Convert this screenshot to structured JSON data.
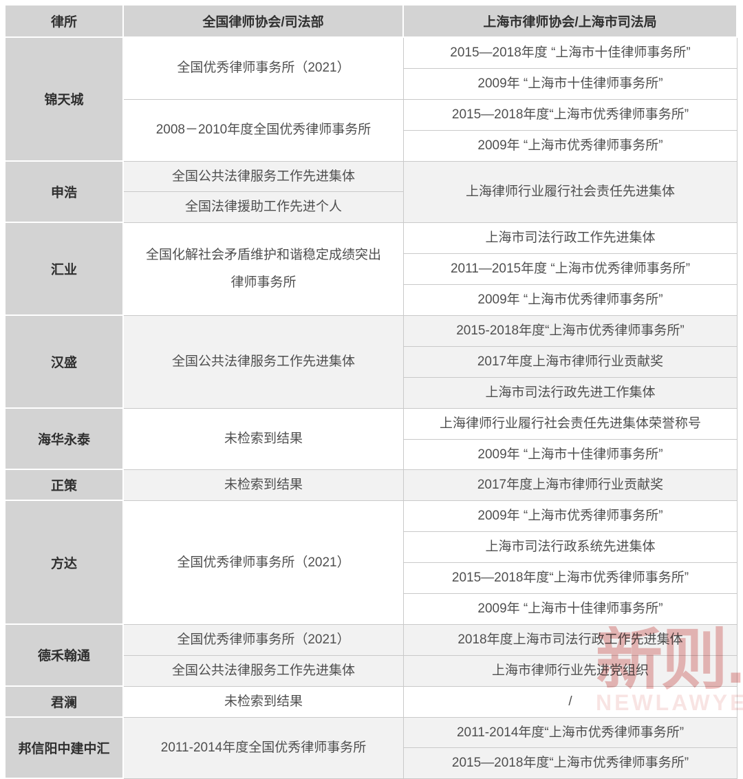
{
  "colors": {
    "header_bg": "#d3d3d3",
    "firm_col_bg": "#d3d3d3",
    "row_shade_bg": "#f2f2f2",
    "row_plain_bg": "#ffffff",
    "grid_border": "#c9c9c9",
    "body_text": "#4f4f4f",
    "header_text": "#2f2f2f",
    "watermark_red": "#c9302c"
  },
  "watermark": {
    "text": "新则.",
    "subtext": "NEWLAWYERS ■"
  },
  "table": {
    "headers": [
      "律所",
      "全国律师协会/司法部",
      "上海市律师协会/上海市司法局"
    ],
    "rows": [
      {
        "shade": false,
        "firm": {
          "text": "锦天城",
          "span": 4
        },
        "national": {
          "text": "全国优秀律师事务所（2021）",
          "span": 2
        },
        "shanghai": {
          "text": "2015—2018年度 “上海市十佳律师事务所”",
          "span": 1
        }
      },
      {
        "shade": false,
        "shanghai": {
          "text": "2009年 “上海市十佳律师事务所”",
          "span": 1
        }
      },
      {
        "shade": false,
        "national": {
          "text": "2008－2010年度全国优秀律师事务所",
          "span": 2
        },
        "shanghai": {
          "text": "2015—2018年度“上海市优秀律师事务所”",
          "span": 1
        }
      },
      {
        "shade": false,
        "shanghai": {
          "text": "2009年 “上海市优秀律师事务所”",
          "span": 1
        }
      },
      {
        "shade": true,
        "firm": {
          "text": "申浩",
          "span": 2
        },
        "national": {
          "text": "全国公共法律服务工作先进集体",
          "span": 1
        },
        "shanghai": {
          "text": "上海律师行业履行社会责任先进集体",
          "span": 2
        }
      },
      {
        "shade": true,
        "national": {
          "text": "全国法律援助工作先进个人",
          "span": 1
        }
      },
      {
        "shade": false,
        "firm": {
          "text": "汇业",
          "span": 3
        },
        "national": {
          "text": "全国化解社会矛盾维护和谐稳定成绩突出\n律师事务所",
          "span": 3
        },
        "shanghai": {
          "text": "上海市司法行政工作先进集体",
          "span": 1
        }
      },
      {
        "shade": false,
        "shanghai": {
          "text": "2011—2015年度 “上海市优秀律师事务所”",
          "span": 1
        }
      },
      {
        "shade": false,
        "shanghai": {
          "text": "2009年 “上海市优秀律师事务所”",
          "span": 1
        }
      },
      {
        "shade": true,
        "firm": {
          "text": "汉盛",
          "span": 3
        },
        "national": {
          "text": "全国公共法律服务工作先进集体",
          "span": 3
        },
        "shanghai": {
          "text": "2015-2018年度“上海市优秀律师事务所”",
          "span": 1
        }
      },
      {
        "shade": true,
        "shanghai": {
          "text": "2017年度上海市律师行业贡献奖",
          "span": 1
        }
      },
      {
        "shade": true,
        "shanghai": {
          "text": "上海市司法行政先进工作集体",
          "span": 1
        }
      },
      {
        "shade": false,
        "firm": {
          "text": "海华永泰",
          "span": 2
        },
        "national": {
          "text": "未检索到结果",
          "span": 2
        },
        "shanghai": {
          "text": "上海律师行业履行社会责任先进集体荣誉称号",
          "span": 1
        }
      },
      {
        "shade": false,
        "shanghai": {
          "text": "2009年 “上海市十佳律师事务所”",
          "span": 1
        }
      },
      {
        "shade": true,
        "firm": {
          "text": "正策",
          "span": 1
        },
        "national": {
          "text": "未检索到结果",
          "span": 1
        },
        "shanghai": {
          "text": "2017年度上海市律师行业贡献奖",
          "span": 1
        }
      },
      {
        "shade": false,
        "firm": {
          "text": "方达",
          "span": 4
        },
        "national": {
          "text": "全国优秀律师事务所（2021）",
          "span": 4
        },
        "shanghai": {
          "text": "2009年 “上海市优秀律师事务所”",
          "span": 1
        }
      },
      {
        "shade": false,
        "shanghai": {
          "text": "上海市司法行政系统先进集体",
          "span": 1
        }
      },
      {
        "shade": false,
        "shanghai": {
          "text": "2015—2018年度“上海市优秀律师事务所”",
          "span": 1
        }
      },
      {
        "shade": false,
        "shanghai": {
          "text": "2009年 “上海市十佳律师事务所”",
          "span": 1
        }
      },
      {
        "shade": true,
        "firm": {
          "text": "德禾翰通",
          "span": 2
        },
        "national": {
          "text": "全国优秀律师事务所（2021）",
          "span": 1
        },
        "shanghai": {
          "text": "2018年度上海市司法行政工作先进集体",
          "span": 1
        }
      },
      {
        "shade": true,
        "national": {
          "text": "全国公共法律服务工作先进集体",
          "span": 1
        },
        "shanghai": {
          "text": "上海市律师行业先进党组织",
          "span": 1
        }
      },
      {
        "shade": false,
        "firm": {
          "text": "君澜",
          "span": 1
        },
        "national": {
          "text": "未检索到结果",
          "span": 1
        },
        "shanghai": {
          "text": "/",
          "span": 1
        }
      },
      {
        "shade": true,
        "firm": {
          "text": "邦信阳中建中汇",
          "span": 2
        },
        "national": {
          "text": "2011-2014年度全国优秀律师事务所",
          "span": 2
        },
        "shanghai": {
          "text": "2011-2014年度“上海市优秀律师事务所”",
          "span": 1
        }
      },
      {
        "shade": true,
        "shanghai": {
          "text": "2015—2018年度“上海市优秀律师事务所”",
          "span": 1
        }
      }
    ]
  },
  "chart_data": {
    "type": "table",
    "title": "",
    "columns": [
      "律所",
      "全国律师协会/司法部",
      "上海市律师协会/上海市司法局"
    ],
    "rows": [
      {
        "firm": "锦天城",
        "national": [
          "全国优秀律师事务所（2021）",
          "2008－2010年度全国优秀律师事务所"
        ],
        "shanghai": [
          "2015—2018年度 “上海市十佳律师事务所”",
          "2009年 “上海市十佳律师事务所”",
          "2015—2018年度“上海市优秀律师事务所”",
          "2009年 “上海市优秀律师事务所”"
        ]
      },
      {
        "firm": "申浩",
        "national": [
          "全国公共法律服务工作先进集体",
          "全国法律援助工作先进个人"
        ],
        "shanghai": [
          "上海律师行业履行社会责任先进集体"
        ]
      },
      {
        "firm": "汇业",
        "national": [
          "全国化解社会矛盾维护和谐稳定成绩突出律师事务所"
        ],
        "shanghai": [
          "上海市司法行政工作先进集体",
          "2011—2015年度 “上海市优秀律师事务所”",
          "2009年 “上海市优秀律师事务所”"
        ]
      },
      {
        "firm": "汉盛",
        "national": [
          "全国公共法律服务工作先进集体"
        ],
        "shanghai": [
          "2015-2018年度“上海市优秀律师事务所”",
          "2017年度上海市律师行业贡献奖",
          "上海市司法行政先进工作集体"
        ]
      },
      {
        "firm": "海华永泰",
        "national": [
          "未检索到结果"
        ],
        "shanghai": [
          "上海律师行业履行社会责任先进集体荣誉称号",
          "2009年 “上海市十佳律师事务所”"
        ]
      },
      {
        "firm": "正策",
        "national": [
          "未检索到结果"
        ],
        "shanghai": [
          "2017年度上海市律师行业贡献奖"
        ]
      },
      {
        "firm": "方达",
        "national": [
          "全国优秀律师事务所（2021）"
        ],
        "shanghai": [
          "2009年 “上海市优秀律师事务所”",
          "上海市司法行政系统先进集体",
          "2015—2018年度“上海市优秀律师事务所”",
          "2009年 “上海市十佳律师事务所”"
        ]
      },
      {
        "firm": "德禾翰通",
        "national": [
          "全国优秀律师事务所（2021）",
          "全国公共法律服务工作先进集体"
        ],
        "shanghai": [
          "2018年度上海市司法行政工作先进集体",
          "上海市律师行业先进党组织"
        ]
      },
      {
        "firm": "君澜",
        "national": [
          "未检索到结果"
        ],
        "shanghai": [
          "/"
        ]
      },
      {
        "firm": "邦信阳中建中汇",
        "national": [
          "2011-2014年度全国优秀律师事务所"
        ],
        "shanghai": [
          "2011-2014年度“上海市优秀律师事务所”",
          "2015—2018年度“上海市优秀律师事务所”"
        ]
      }
    ]
  }
}
